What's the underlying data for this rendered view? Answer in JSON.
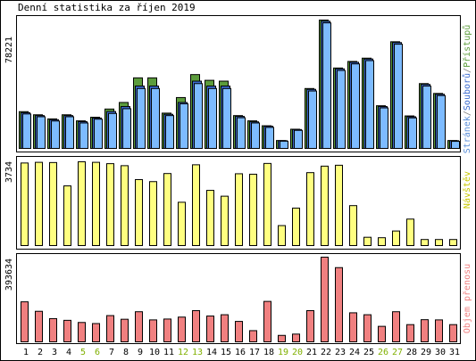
{
  "title": "Denní statistika za říjen 2019",
  "colors": {
    "hits": "#5c9c3c",
    "files": "#3c6cd0",
    "pages": "#7dbbff",
    "visits": "#ffff80",
    "volume": "#f08080",
    "weekend_day_label": "#80b000",
    "workday_label": "#000000",
    "frame": "#000000",
    "background": "#ffffff"
  },
  "chart_data": [
    {
      "type": "bar",
      "name": "access",
      "max_label": "78221",
      "ylim": [
        0,
        78221
      ],
      "legend": [
        {
          "name": "Stránek",
          "color": "#5a8ed8"
        },
        {
          "name": "/",
          "color": "#808080"
        },
        {
          "name": "Souborů",
          "color": "#3c6cd0"
        },
        {
          "name": "/",
          "color": "#808080"
        },
        {
          "name": "Přístupů",
          "color": "#5c9c3c"
        }
      ],
      "categories": [
        "1",
        "2",
        "3",
        "4",
        "5",
        "6",
        "7",
        "8",
        "9",
        "10",
        "11",
        "12",
        "13",
        "14",
        "15",
        "16",
        "17",
        "18",
        "19",
        "20",
        "21",
        "22",
        "23",
        "24",
        "25",
        "26",
        "27",
        "28",
        "29",
        "30",
        "31"
      ],
      "weekend_days": [
        "5",
        "6",
        "12",
        "13",
        "19",
        "20",
        "26",
        "27"
      ],
      "series": [
        {
          "name": "Přístupů",
          "color": "#5c9c3c",
          "values": [
            22400,
            20500,
            18000,
            20500,
            16800,
            19000,
            24000,
            28000,
            43000,
            43000,
            21500,
            31000,
            45000,
            41500,
            41000,
            20000,
            16800,
            13800,
            4800,
            11700,
            36500,
            78200,
            49000,
            53000,
            55000,
            26000,
            65000,
            19800,
            39500,
            33500,
            4800
          ]
        },
        {
          "name": "Souborů",
          "color": "#3c6cd0",
          "values": [
            21800,
            20000,
            17500,
            20000,
            16300,
            18500,
            22500,
            25500,
            38000,
            38000,
            20800,
            28000,
            41000,
            38000,
            38000,
            19500,
            16200,
            13500,
            4700,
            11500,
            36000,
            77500,
            48500,
            52500,
            54500,
            25500,
            64500,
            19300,
            39000,
            33000,
            4700
          ]
        },
        {
          "name": "Stránek",
          "color": "#7dbbff",
          "values": [
            21000,
            19300,
            16700,
            19300,
            15500,
            17800,
            21300,
            24200,
            36500,
            36500,
            20000,
            27200,
            39500,
            36500,
            36500,
            18700,
            15500,
            12800,
            4400,
            11000,
            35000,
            76500,
            47500,
            51500,
            53500,
            24700,
            63500,
            18600,
            38000,
            32200,
            4300
          ]
        }
      ]
    },
    {
      "type": "bar",
      "name": "visits",
      "max_label": "3734",
      "legend": [
        {
          "name": "Návštěv",
          "color": "#c8c800"
        }
      ],
      "ylim": [
        0,
        3734
      ],
      "categories": [
        "1",
        "2",
        "3",
        "4",
        "5",
        "6",
        "7",
        "8",
        "9",
        "10",
        "11",
        "12",
        "13",
        "14",
        "15",
        "16",
        "17",
        "18",
        "19",
        "20",
        "21",
        "22",
        "23",
        "24",
        "25",
        "26",
        "27",
        "28",
        "29",
        "30",
        "31"
      ],
      "series": [
        {
          "name": "Návštěv",
          "color": "#ffff80",
          "values": [
            3680,
            3710,
            3700,
            2660,
            3734,
            3710,
            3650,
            3560,
            2940,
            2850,
            3210,
            1930,
            3600,
            2460,
            2200,
            3200,
            3180,
            3660,
            890,
            1670,
            3250,
            3540,
            3580,
            1780,
            370,
            350,
            650,
            1180,
            270,
            270,
            270
          ]
        }
      ]
    },
    {
      "type": "bar",
      "name": "volume",
      "max_label": "393634",
      "legend": [
        {
          "name": "Objem přenosu",
          "color": "#f08080"
        }
      ],
      "ylim": [
        0,
        393634
      ],
      "categories": [
        "1",
        "2",
        "3",
        "4",
        "5",
        "6",
        "7",
        "8",
        "9",
        "10",
        "11",
        "12",
        "13",
        "14",
        "15",
        "16",
        "17",
        "18",
        "19",
        "20",
        "21",
        "22",
        "23",
        "24",
        "25",
        "26",
        "27",
        "28",
        "29",
        "30",
        "31"
      ],
      "series": [
        {
          "name": "Objem přenosu",
          "color": "#f08080",
          "values": [
            186000,
            142000,
            108000,
            100000,
            90000,
            85000,
            122000,
            105000,
            140000,
            102000,
            106000,
            115000,
            145000,
            120000,
            126000,
            95000,
            52000,
            188000,
            30000,
            36000,
            145000,
            393634,
            345000,
            135000,
            126000,
            72000,
            140000,
            80000,
            103000,
            102000,
            80000
          ]
        }
      ]
    }
  ],
  "x_labels": [
    "1",
    "2",
    "3",
    "4",
    "5",
    "6",
    "7",
    "8",
    "9",
    "10",
    "11",
    "12",
    "13",
    "14",
    "15",
    "16",
    "17",
    "18",
    "19",
    "20",
    "21",
    "22",
    "23",
    "24",
    "25",
    "26",
    "27",
    "28",
    "29",
    "30",
    "31"
  ]
}
